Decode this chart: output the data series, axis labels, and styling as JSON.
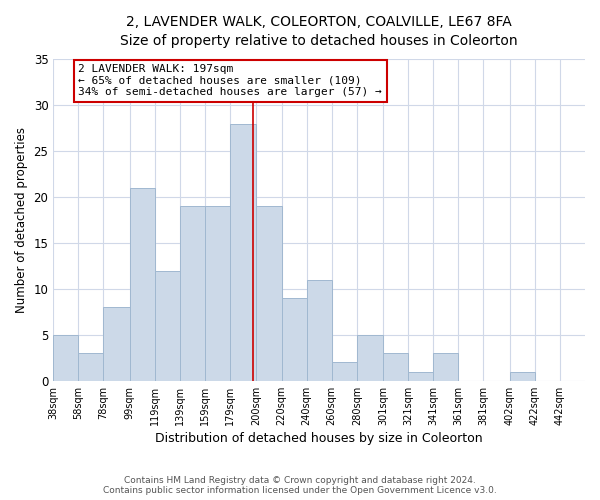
{
  "title_line1": "2, LAVENDER WALK, COLEORTON, COALVILLE, LE67 8FA",
  "title_line2": "Size of property relative to detached houses in Coleorton",
  "xlabel": "Distribution of detached houses by size in Coleorton",
  "ylabel": "Number of detached properties",
  "bin_labels": [
    "38sqm",
    "58sqm",
    "78sqm",
    "99sqm",
    "119sqm",
    "139sqm",
    "159sqm",
    "179sqm",
    "200sqm",
    "220sqm",
    "240sqm",
    "260sqm",
    "280sqm",
    "301sqm",
    "321sqm",
    "341sqm",
    "361sqm",
    "381sqm",
    "402sqm",
    "422sqm",
    "442sqm"
  ],
  "bin_edges": [
    38,
    58,
    78,
    99,
    119,
    139,
    159,
    179,
    200,
    220,
    240,
    260,
    280,
    301,
    321,
    341,
    361,
    381,
    402,
    422,
    442
  ],
  "counts": [
    5,
    3,
    8,
    21,
    12,
    19,
    19,
    28,
    19,
    9,
    11,
    2,
    5,
    3,
    1,
    3,
    0,
    0,
    1,
    0,
    0
  ],
  "bar_color": "#ccd9e8",
  "bar_edge_color": "#a0b8d0",
  "grid_color": "#d0d8e8",
  "property_value": 197,
  "vline_color": "#cc0000",
  "annotation_text_line1": "2 LAVENDER WALK: 197sqm",
  "annotation_text_line2": "← 65% of detached houses are smaller (109)",
  "annotation_text_line3": "34% of semi-detached houses are larger (57) →",
  "annotation_box_color": "#ffffff",
  "annotation_border_color": "#cc0000",
  "ylim": [
    0,
    35
  ],
  "yticks": [
    0,
    5,
    10,
    15,
    20,
    25,
    30,
    35
  ],
  "footer_line1": "Contains HM Land Registry data © Crown copyright and database right 2024.",
  "footer_line2": "Contains public sector information licensed under the Open Government Licence v3.0.",
  "background_color": "#ffffff"
}
